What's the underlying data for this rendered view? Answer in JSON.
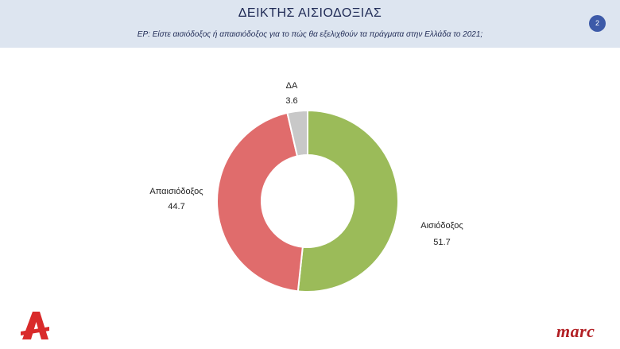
{
  "header": {
    "title": "ΔΕΙΚΤΗΣ ΑΙΣΙΟΔΟΞΙΑΣ",
    "question": "ΕΡ:  Είστε αισιόδοξος ή απαισιόδοξος για το πώς θα εξελιχθούν τα πράγματα  στην Ελλάδα το 2021;",
    "page_number": "2"
  },
  "chart_data": {
    "type": "pie",
    "subtype": "donut",
    "title": "",
    "slices": [
      {
        "label": "Αισιόδοξος",
        "value": 51.7,
        "value_label": "51.7",
        "color": "#9bbb59"
      },
      {
        "label": "Απαισιόδοξος",
        "value": 44.7,
        "value_label": "44.7",
        "color": "#e06c6c"
      },
      {
        "label": "ΔΑ",
        "value": 3.6,
        "value_label": "3.6",
        "color": "#c8c8c8"
      }
    ],
    "legend": "none",
    "start_angle_deg": 0,
    "direction": "clockwise"
  },
  "logos": {
    "left": "alpha-tv-logo",
    "right_text": "marc"
  },
  "colors": {
    "header_bg": "#dde5f0",
    "title_text": "#1f2a55",
    "badge": "#3d5aa8",
    "logo_red": "#b21f24"
  }
}
